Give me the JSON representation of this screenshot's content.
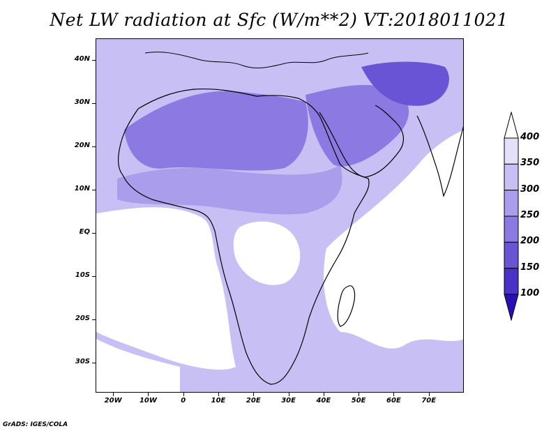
{
  "title": "Net LW radiation at Sfc (W/m**2) VT:2018011021",
  "credit": "GrADS: IGES/COLA",
  "map": {
    "lon_range": [
      -25,
      80
    ],
    "lat_range": [
      -37,
      45
    ],
    "lat_ticks": [
      {
        "value": 40,
        "label": "40N"
      },
      {
        "value": 30,
        "label": "30N"
      },
      {
        "value": 20,
        "label": "20N"
      },
      {
        "value": 10,
        "label": "10N"
      },
      {
        "value": 0,
        "label": "EQ"
      },
      {
        "value": -10,
        "label": "10S"
      },
      {
        "value": -20,
        "label": "20S"
      },
      {
        "value": -30,
        "label": "30S"
      }
    ],
    "lon_ticks": [
      {
        "value": -20,
        "label": "20W"
      },
      {
        "value": -10,
        "label": "10W"
      },
      {
        "value": 0,
        "label": "0"
      },
      {
        "value": 10,
        "label": "10E"
      },
      {
        "value": 20,
        "label": "20E"
      },
      {
        "value": 30,
        "label": "30E"
      },
      {
        "value": 40,
        "label": "40E"
      },
      {
        "value": 50,
        "label": "50E"
      },
      {
        "value": 60,
        "label": "60E"
      },
      {
        "value": 70,
        "label": "70E"
      }
    ]
  },
  "colorbar": {
    "levels": [
      "100",
      "150",
      "200",
      "250",
      "300",
      "350",
      "400"
    ],
    "colors": [
      "#2b0fb4",
      "#4a32c6",
      "#6a54d6",
      "#8c7ae2",
      "#aa9dec",
      "#c8c0f4",
      "#e4e0fa",
      "#ffffff"
    ]
  }
}
